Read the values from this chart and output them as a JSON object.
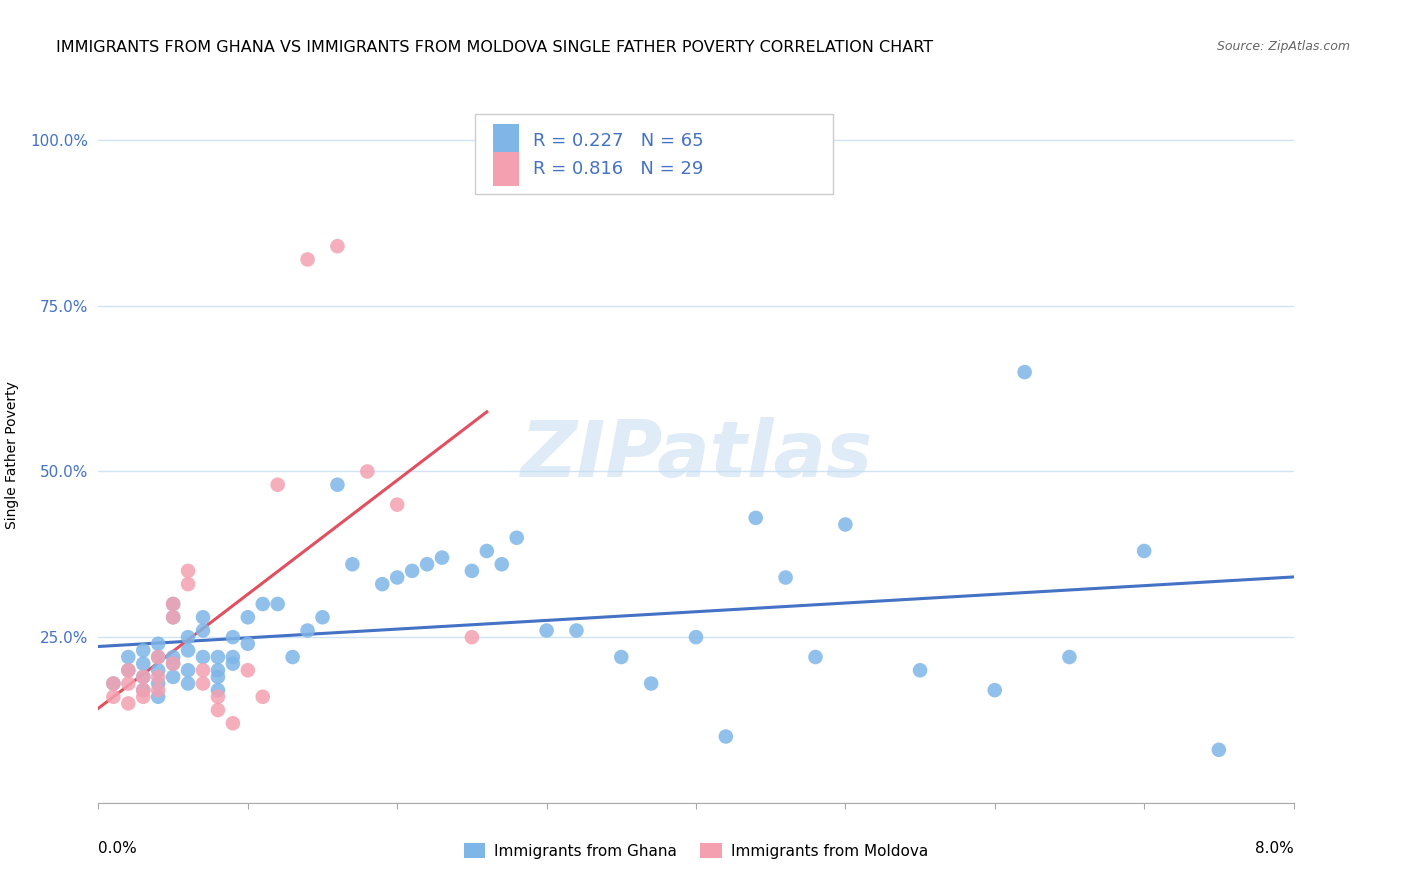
{
  "title": "IMMIGRANTS FROM GHANA VS IMMIGRANTS FROM MOLDOVA SINGLE FATHER POVERTY CORRELATION CHART",
  "source": "Source: ZipAtlas.com",
  "ylabel": "Single Father Poverty",
  "watermark": "ZIPatlas",
  "ghana_R": 0.227,
  "ghana_N": 65,
  "moldova_R": 0.816,
  "moldova_N": 29,
  "ghana_color": "#7EB6E8",
  "moldova_color": "#F4A0B0",
  "ghana_line_color": "#4472C4",
  "moldova_line_color": "#E05060",
  "background_color": "#FFFFFF",
  "grid_color": "#D0E4F5",
  "xlim": [
    0.0,
    0.08
  ],
  "ylim": [
    0.0,
    1.05
  ],
  "yticks": [
    0.0,
    0.25,
    0.5,
    0.75,
    1.0
  ],
  "ytick_labels": [
    "",
    "25.0%",
    "50.0%",
    "75.0%",
    "100.0%"
  ],
  "ghana_x": [
    0.001,
    0.002,
    0.002,
    0.003,
    0.003,
    0.003,
    0.003,
    0.004,
    0.004,
    0.004,
    0.004,
    0.004,
    0.005,
    0.005,
    0.005,
    0.005,
    0.005,
    0.006,
    0.006,
    0.006,
    0.006,
    0.007,
    0.007,
    0.007,
    0.008,
    0.008,
    0.008,
    0.008,
    0.009,
    0.009,
    0.009,
    0.01,
    0.01,
    0.011,
    0.012,
    0.013,
    0.014,
    0.015,
    0.016,
    0.017,
    0.019,
    0.02,
    0.021,
    0.022,
    0.023,
    0.025,
    0.026,
    0.027,
    0.028,
    0.03,
    0.032,
    0.035,
    0.037,
    0.04,
    0.042,
    0.044,
    0.046,
    0.048,
    0.05,
    0.055,
    0.06,
    0.062,
    0.065,
    0.07,
    0.075
  ],
  "ghana_y": [
    0.18,
    0.2,
    0.22,
    0.19,
    0.21,
    0.23,
    0.17,
    0.2,
    0.22,
    0.18,
    0.16,
    0.24,
    0.19,
    0.22,
    0.21,
    0.28,
    0.3,
    0.25,
    0.23,
    0.2,
    0.18,
    0.22,
    0.26,
    0.28,
    0.2,
    0.22,
    0.19,
    0.17,
    0.21,
    0.25,
    0.22,
    0.24,
    0.28,
    0.3,
    0.3,
    0.22,
    0.26,
    0.28,
    0.48,
    0.36,
    0.33,
    0.34,
    0.35,
    0.36,
    0.37,
    0.35,
    0.38,
    0.36,
    0.4,
    0.26,
    0.26,
    0.22,
    0.18,
    0.25,
    0.1,
    0.43,
    0.34,
    0.22,
    0.42,
    0.2,
    0.17,
    0.65,
    0.22,
    0.38,
    0.08
  ],
  "moldova_x": [
    0.001,
    0.001,
    0.002,
    0.002,
    0.002,
    0.003,
    0.003,
    0.003,
    0.004,
    0.004,
    0.004,
    0.005,
    0.005,
    0.005,
    0.006,
    0.006,
    0.007,
    0.007,
    0.008,
    0.008,
    0.009,
    0.01,
    0.011,
    0.012,
    0.014,
    0.016,
    0.018,
    0.02,
    0.025
  ],
  "moldova_y": [
    0.18,
    0.16,
    0.2,
    0.15,
    0.18,
    0.19,
    0.16,
    0.17,
    0.22,
    0.19,
    0.17,
    0.3,
    0.28,
    0.21,
    0.35,
    0.33,
    0.18,
    0.2,
    0.16,
    0.14,
    0.12,
    0.2,
    0.16,
    0.48,
    0.82,
    0.84,
    0.5,
    0.45,
    0.25
  ],
  "title_fontsize": 11.5,
  "source_fontsize": 9,
  "axis_label_fontsize": 10,
  "tick_fontsize": 11,
  "legend_fontsize": 13,
  "watermark_fontsize": 56
}
